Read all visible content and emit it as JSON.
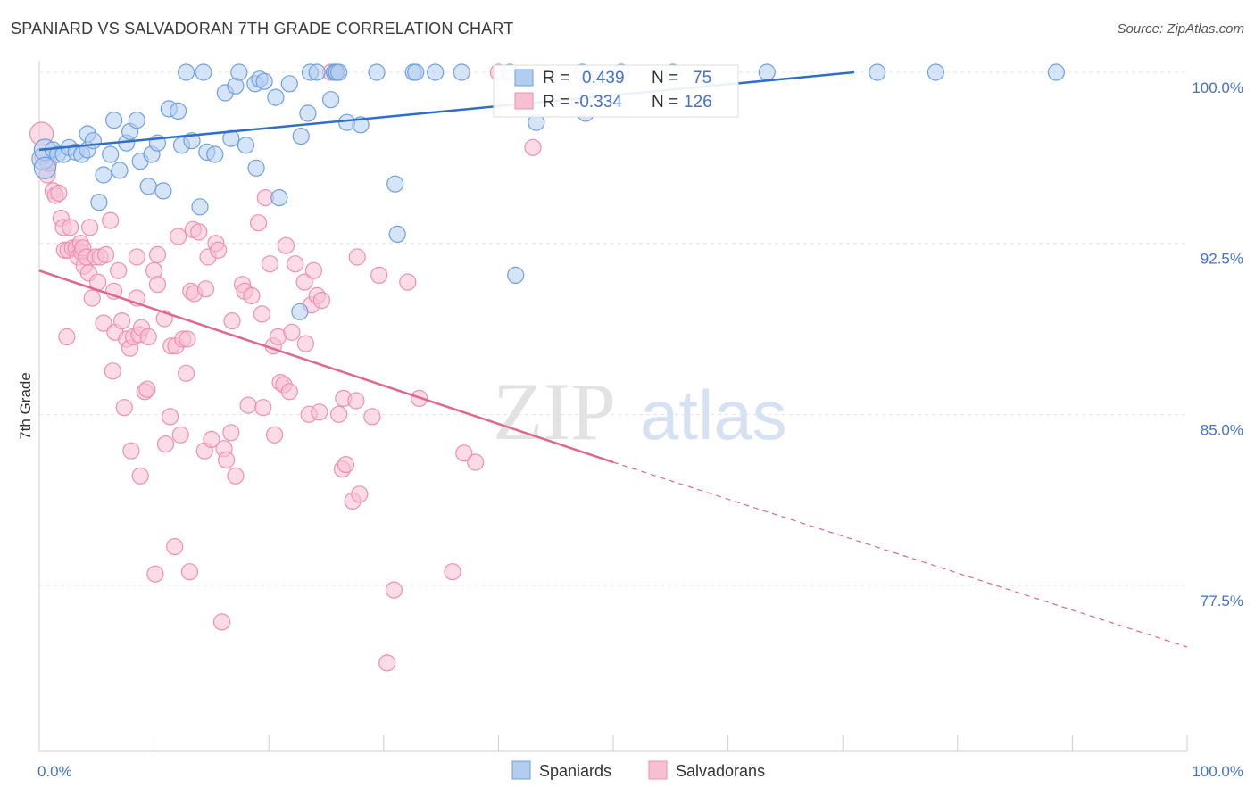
{
  "title": "SPANIARD VS SALVADORAN 7TH GRADE CORRELATION CHART",
  "source": "Source: ZipAtlas.com",
  "watermark": {
    "zip": "ZIP",
    "atlas": "atlas"
  },
  "colors": {
    "blue": "#6fa0dc",
    "blue_line": "#2e6fcc",
    "pink": "#ef8fb0",
    "pink_line": "#e0668f",
    "axis_text": "#4472c4"
  },
  "chart_data": {
    "type": "scatter",
    "title": "SPANIARD VS SALVADORAN 7TH GRADE CORRELATION CHART",
    "xlabel": "",
    "ylabel": "7th Grade",
    "xlim": [
      0,
      100
    ],
    "ylim": [
      71.0,
      100.7
    ],
    "x_tick_labels": [
      "0.0%",
      "100.0%"
    ],
    "y_ticks": [
      77.5,
      85.0,
      92.5,
      100.0
    ],
    "y_tick_labels": [
      "77.5%",
      "85.0%",
      "92.5%",
      "100.0%"
    ],
    "grid": true,
    "legend_position": "bottom-center",
    "stats": [
      {
        "series": "Spaniards",
        "r_label": "R =",
        "r": "0.439",
        "n_label": "N =",
        "n": "75"
      },
      {
        "series": "Salvadorans",
        "r_label": "R =",
        "r": "-0.334",
        "n_label": "N =",
        "n": "126"
      }
    ],
    "series": [
      {
        "name": "Spaniards",
        "color": "#6fa0dc",
        "trend": {
          "x": [
            0,
            71
          ],
          "y": [
            96.6,
            100.0
          ]
        },
        "points": [
          [
            0.3,
            96.2
          ],
          [
            0.5,
            96.6
          ],
          [
            0.5,
            95.8
          ],
          [
            1.2,
            96.6
          ],
          [
            1.6,
            96.4
          ],
          [
            2.1,
            96.4
          ],
          [
            2.6,
            96.7
          ],
          [
            3.2,
            96.5
          ],
          [
            3.7,
            96.4
          ],
          [
            4.2,
            96.6
          ],
          [
            4.2,
            97.3
          ],
          [
            4.7,
            97.0
          ],
          [
            5.2,
            94.3
          ],
          [
            5.6,
            95.5
          ],
          [
            6.2,
            96.4
          ],
          [
            6.5,
            97.9
          ],
          [
            7.0,
            95.7
          ],
          [
            7.6,
            96.9
          ],
          [
            7.9,
            97.4
          ],
          [
            8.5,
            97.9
          ],
          [
            8.8,
            96.1
          ],
          [
            9.5,
            95.0
          ],
          [
            9.8,
            96.4
          ],
          [
            10.3,
            96.9
          ],
          [
            10.8,
            94.8
          ],
          [
            11.3,
            98.4
          ],
          [
            12.1,
            98.3
          ],
          [
            12.4,
            96.8
          ],
          [
            12.8,
            100.0
          ],
          [
            13.3,
            97.0
          ],
          [
            14.0,
            94.1
          ],
          [
            14.3,
            100.0
          ],
          [
            14.6,
            96.5
          ],
          [
            15.3,
            96.4
          ],
          [
            16.2,
            99.1
          ],
          [
            16.7,
            97.1
          ],
          [
            17.1,
            99.4
          ],
          [
            17.4,
            100.0
          ],
          [
            18.0,
            96.8
          ],
          [
            18.8,
            99.5
          ],
          [
            18.9,
            95.8
          ],
          [
            19.2,
            99.7
          ],
          [
            19.6,
            99.6
          ],
          [
            20.6,
            98.9
          ],
          [
            20.9,
            94.5
          ],
          [
            21.8,
            99.5
          ],
          [
            22.7,
            89.5
          ],
          [
            22.8,
            97.2
          ],
          [
            23.4,
            98.2
          ],
          [
            23.6,
            100.0
          ],
          [
            24.2,
            100.0
          ],
          [
            25.4,
            98.8
          ],
          [
            25.7,
            100.0
          ],
          [
            25.9,
            100.0
          ],
          [
            25.9,
            100.0
          ],
          [
            26.1,
            100.0
          ],
          [
            26.8,
            97.8
          ],
          [
            28.0,
            97.7
          ],
          [
            29.4,
            100.0
          ],
          [
            31.0,
            95.1
          ],
          [
            31.2,
            92.9
          ],
          [
            32.6,
            100.0
          ],
          [
            32.8,
            100.0
          ],
          [
            34.5,
            100.0
          ],
          [
            36.8,
            100.0
          ],
          [
            41.0,
            100.0
          ],
          [
            41.5,
            91.1
          ],
          [
            43.3,
            97.8
          ],
          [
            47.3,
            100.0
          ],
          [
            47.6,
            98.2
          ],
          [
            47.8,
            99.6
          ],
          [
            50.7,
            100.0
          ],
          [
            55.2,
            100.0
          ],
          [
            63.4,
            100.0
          ],
          [
            73.0,
            100.0
          ],
          [
            78.1,
            100.0
          ],
          [
            88.6,
            100.0
          ]
        ]
      },
      {
        "name": "Salvadorans",
        "color": "#ef8fb0",
        "trend": {
          "x": [
            0,
            50,
            100
          ],
          "y": [
            91.3,
            82.9,
            74.8
          ],
          "solid_until": 50
        },
        "points": [
          [
            0.2,
            97.3
          ],
          [
            0.3,
            96.3
          ],
          [
            0.7,
            95.5
          ],
          [
            0.8,
            96.0
          ],
          [
            1.2,
            94.8
          ],
          [
            1.4,
            94.6
          ],
          [
            1.7,
            94.7
          ],
          [
            1.9,
            93.6
          ],
          [
            2.1,
            93.2
          ],
          [
            2.2,
            92.2
          ],
          [
            2.4,
            88.4
          ],
          [
            2.5,
            92.2
          ],
          [
            2.7,
            93.2
          ],
          [
            2.9,
            92.3
          ],
          [
            3.2,
            92.3
          ],
          [
            3.4,
            91.9
          ],
          [
            3.6,
            92.5
          ],
          [
            3.7,
            92.1
          ],
          [
            3.8,
            92.3
          ],
          [
            3.9,
            91.5
          ],
          [
            4.1,
            91.9
          ],
          [
            4.3,
            91.2
          ],
          [
            4.4,
            93.2
          ],
          [
            4.6,
            90.1
          ],
          [
            4.9,
            91.9
          ],
          [
            5.1,
            90.8
          ],
          [
            5.3,
            91.9
          ],
          [
            5.6,
            89.0
          ],
          [
            5.8,
            92.0
          ],
          [
            6.2,
            93.5
          ],
          [
            6.4,
            86.9
          ],
          [
            6.5,
            90.4
          ],
          [
            6.6,
            88.6
          ],
          [
            6.9,
            91.3
          ],
          [
            7.2,
            89.1
          ],
          [
            7.4,
            85.3
          ],
          [
            7.6,
            88.3
          ],
          [
            7.9,
            87.9
          ],
          [
            8.0,
            83.4
          ],
          [
            8.2,
            88.4
          ],
          [
            8.5,
            91.9
          ],
          [
            8.5,
            90.1
          ],
          [
            8.7,
            88.5
          ],
          [
            8.8,
            82.3
          ],
          [
            8.9,
            88.8
          ],
          [
            9.2,
            86.0
          ],
          [
            9.4,
            86.1
          ],
          [
            9.5,
            88.4
          ],
          [
            10.0,
            91.3
          ],
          [
            10.1,
            78.0
          ],
          [
            10.3,
            92.0
          ],
          [
            10.3,
            90.7
          ],
          [
            10.9,
            89.2
          ],
          [
            11.0,
            83.7
          ],
          [
            11.4,
            84.9
          ],
          [
            11.5,
            88.0
          ],
          [
            11.8,
            79.2
          ],
          [
            11.9,
            88.0
          ],
          [
            12.1,
            92.8
          ],
          [
            12.3,
            84.1
          ],
          [
            12.5,
            88.3
          ],
          [
            12.8,
            86.8
          ],
          [
            12.9,
            88.3
          ],
          [
            13.1,
            78.1
          ],
          [
            13.2,
            90.4
          ],
          [
            13.4,
            93.1
          ],
          [
            13.5,
            90.3
          ],
          [
            13.9,
            93.0
          ],
          [
            14.4,
            83.4
          ],
          [
            14.5,
            90.5
          ],
          [
            14.7,
            91.9
          ],
          [
            15.0,
            83.9
          ],
          [
            15.4,
            92.5
          ],
          [
            15.6,
            92.2
          ],
          [
            15.9,
            75.9
          ],
          [
            16.1,
            83.5
          ],
          [
            16.3,
            83.0
          ],
          [
            16.7,
            84.2
          ],
          [
            16.8,
            89.1
          ],
          [
            17.1,
            82.3
          ],
          [
            17.7,
            90.7
          ],
          [
            17.9,
            90.4
          ],
          [
            18.2,
            85.4
          ],
          [
            18.5,
            90.2
          ],
          [
            19.1,
            93.4
          ],
          [
            19.4,
            89.4
          ],
          [
            19.5,
            85.3
          ],
          [
            19.7,
            94.5
          ],
          [
            20.1,
            91.6
          ],
          [
            20.4,
            88.0
          ],
          [
            20.5,
            84.1
          ],
          [
            20.8,
            88.4
          ],
          [
            21.0,
            86.4
          ],
          [
            21.3,
            86.3
          ],
          [
            21.5,
            92.4
          ],
          [
            21.8,
            86.0
          ],
          [
            22.0,
            88.6
          ],
          [
            22.3,
            91.6
          ],
          [
            23.1,
            90.8
          ],
          [
            23.2,
            88.1
          ],
          [
            23.5,
            85.0
          ],
          [
            23.7,
            89.8
          ],
          [
            23.9,
            91.3
          ],
          [
            24.2,
            90.2
          ],
          [
            24.4,
            85.1
          ],
          [
            24.6,
            90.0
          ],
          [
            25.4,
            100.0
          ],
          [
            25.8,
            100.0
          ],
          [
            26.1,
            85.0
          ],
          [
            26.4,
            82.6
          ],
          [
            26.5,
            85.7
          ],
          [
            26.7,
            82.8
          ],
          [
            27.3,
            81.2
          ],
          [
            27.6,
            85.6
          ],
          [
            27.7,
            91.9
          ],
          [
            27.9,
            81.5
          ],
          [
            29.0,
            84.9
          ],
          [
            29.6,
            91.1
          ],
          [
            30.3,
            74.1
          ],
          [
            30.9,
            77.3
          ],
          [
            32.1,
            90.8
          ],
          [
            33.1,
            85.7
          ],
          [
            36.0,
            78.1
          ],
          [
            37.0,
            83.3
          ],
          [
            38.0,
            82.9
          ],
          [
            40.0,
            100.0
          ],
          [
            43.0,
            96.7
          ]
        ]
      }
    ]
  }
}
